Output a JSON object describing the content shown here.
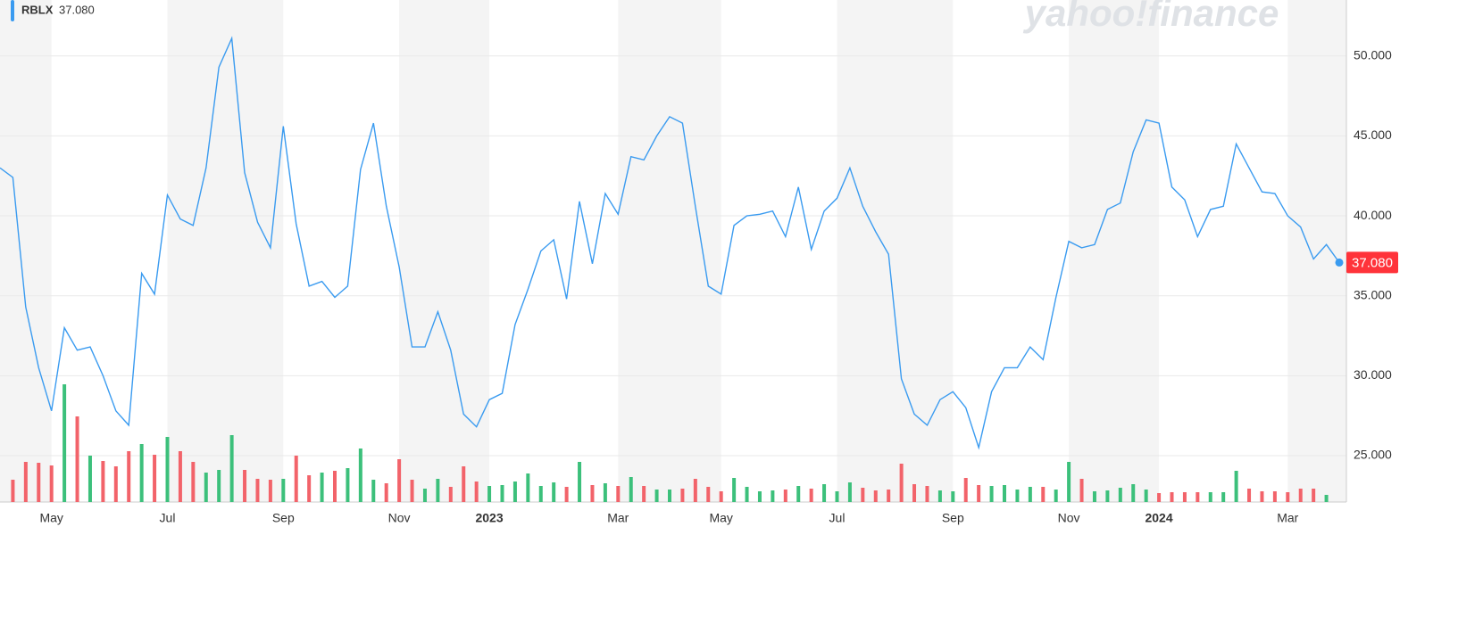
{
  "chart_data": {
    "type": "line",
    "watermark": "yahoo!finance",
    "series": [
      {
        "name": "RBLX",
        "color": "#3a9bf0",
        "values": [
          43,
          42.4,
          34.3,
          30.5,
          27.8,
          33,
          31.6,
          31.8,
          30,
          27.8,
          26.9,
          36.4,
          35.1,
          41.3,
          39.8,
          39.4,
          43,
          49.3,
          51.1,
          42.7,
          39.6,
          38,
          45.6,
          39.5,
          35.6,
          35.9,
          34.9,
          35.6,
          42.9,
          45.8,
          40.6,
          36.8,
          31.8,
          31.8,
          34,
          31.6,
          27.6,
          26.8,
          28.5,
          28.9,
          33.2,
          35.4,
          37.8,
          38.5,
          34.8,
          40.9,
          37,
          41.4,
          40.1,
          43.7,
          43.5,
          45,
          46.2,
          45.8,
          40.6,
          35.6,
          35.1,
          39.4,
          40,
          40.1,
          40.3,
          38.7,
          41.8,
          37.9,
          40.3,
          41.1,
          43,
          40.6,
          39,
          37.6,
          29.8,
          27.6,
          26.9,
          28.5,
          29,
          28,
          25.5,
          29,
          30.5,
          30.5,
          31.8,
          31,
          34.9,
          38.4,
          38,
          38.2,
          40.4,
          40.8,
          44,
          46,
          45.8,
          41.8,
          41,
          38.7,
          40.4,
          40.6,
          44.5,
          43,
          41.5,
          41.4,
          40,
          39.3,
          37.3,
          38.2,
          37.08
        ]
      }
    ],
    "last_price": {
      "value": 37.08,
      "label": "37.080",
      "color": "#ff333a"
    },
    "categories": [
      null,
      null,
      null,
      null,
      "May",
      null,
      null,
      null,
      null,
      null,
      null,
      null,
      null,
      "Jul",
      null,
      null,
      null,
      null,
      null,
      null,
      null,
      null,
      "Sep",
      null,
      null,
      null,
      null,
      null,
      null,
      null,
      null,
      "Nov",
      null,
      null,
      null,
      null,
      null,
      null,
      "2023",
      null,
      null,
      null,
      null,
      null,
      null,
      null,
      null,
      null,
      "Mar",
      null,
      null,
      null,
      null,
      null,
      null,
      null,
      "May",
      null,
      null,
      null,
      null,
      null,
      null,
      null,
      null,
      "Jul",
      null,
      null,
      null,
      null,
      null,
      null,
      null,
      null,
      "Sep",
      null,
      null,
      null,
      null,
      null,
      null,
      null,
      null,
      "Nov",
      null,
      null,
      null,
      null,
      null,
      null,
      "2024",
      null,
      null,
      null,
      null,
      null,
      null,
      null,
      null,
      null,
      "Mar",
      null,
      null,
      null,
      null
    ],
    "volume": {
      "values": [
        null,
        25,
        45,
        44,
        41,
        132,
        96,
        52,
        46,
        40,
        57,
        65,
        53,
        73,
        57,
        45,
        33,
        36,
        75,
        36,
        26,
        25,
        26,
        52,
        30,
        33,
        35,
        38,
        60,
        25,
        21,
        48,
        25,
        15,
        26,
        17,
        40,
        23,
        18,
        19,
        23,
        32,
        18,
        22,
        17,
        45,
        19,
        21,
        18,
        28,
        18,
        14,
        14,
        15,
        26,
        17,
        12,
        27,
        17,
        12,
        13,
        14,
        18,
        15,
        20,
        12,
        22,
        16,
        13,
        14,
        43,
        20,
        18,
        13,
        12,
        27,
        19,
        18,
        19,
        14,
        17,
        17,
        14,
        45,
        26,
        12,
        13,
        16,
        20,
        14,
        10,
        11,
        11,
        11,
        11,
        11,
        35,
        15,
        12,
        12,
        11,
        15,
        15,
        8,
        null
      ],
      "colors": [
        null,
        "#f2636a",
        "#f2636a",
        "#f2636a",
        "#f2636a",
        "#3cc07b",
        "#f2636a",
        "#3cc07b",
        "#f2636a",
        "#f2636a",
        "#f2636a",
        "#3cc07b",
        "#f2636a",
        "#3cc07b",
        "#f2636a",
        "#f2636a",
        "#3cc07b",
        "#3cc07b",
        "#3cc07b",
        "#f2636a",
        "#f2636a",
        "#f2636a",
        "#3cc07b",
        "#f2636a",
        "#f2636a",
        "#3cc07b",
        "#f2636a",
        "#3cc07b",
        "#3cc07b",
        "#3cc07b",
        "#f2636a",
        "#f2636a",
        "#f2636a",
        "#3cc07b",
        "#3cc07b",
        "#f2636a",
        "#f2636a",
        "#f2636a",
        "#3cc07b",
        "#3cc07b",
        "#3cc07b",
        "#3cc07b",
        "#3cc07b",
        "#3cc07b",
        "#f2636a",
        "#3cc07b",
        "#f2636a",
        "#3cc07b",
        "#f2636a",
        "#3cc07b",
        "#f2636a",
        "#3cc07b",
        "#3cc07b",
        "#f2636a",
        "#f2636a",
        "#f2636a",
        "#f2636a",
        "#3cc07b",
        "#3cc07b",
        "#3cc07b",
        "#3cc07b",
        "#f2636a",
        "#3cc07b",
        "#f2636a",
        "#3cc07b",
        "#3cc07b",
        "#3cc07b",
        "#f2636a",
        "#f2636a",
        "#f2636a",
        "#f2636a",
        "#f2636a",
        "#f2636a",
        "#3cc07b",
        "#3cc07b",
        "#f2636a",
        "#f2636a",
        "#3cc07b",
        "#3cc07b",
        "#3cc07b",
        "#3cc07b",
        "#f2636a",
        "#3cc07b",
        "#3cc07b",
        "#f2636a",
        "#3cc07b",
        "#3cc07b",
        "#3cc07b",
        "#3cc07b",
        "#3cc07b",
        "#f2636a",
        "#f2636a",
        "#f2636a",
        "#f2636a",
        "#3cc07b",
        "#3cc07b",
        "#3cc07b",
        "#f2636a",
        "#f2636a",
        "#f2636a",
        "#f2636a",
        "#f2636a",
        "#f2636a",
        "#3cc07b",
        null
      ]
    },
    "ylim": [
      22.1,
      53.5
    ],
    "yticks": [
      {
        "value": 25,
        "label": "25.000"
      },
      {
        "value": 30,
        "label": "30.000"
      },
      {
        "value": 35,
        "label": "35.000"
      },
      {
        "value": 40,
        "label": "40.000"
      },
      {
        "value": 45,
        "label": "45.000"
      },
      {
        "value": 50,
        "label": "50.000"
      }
    ],
    "grid": true
  }
}
